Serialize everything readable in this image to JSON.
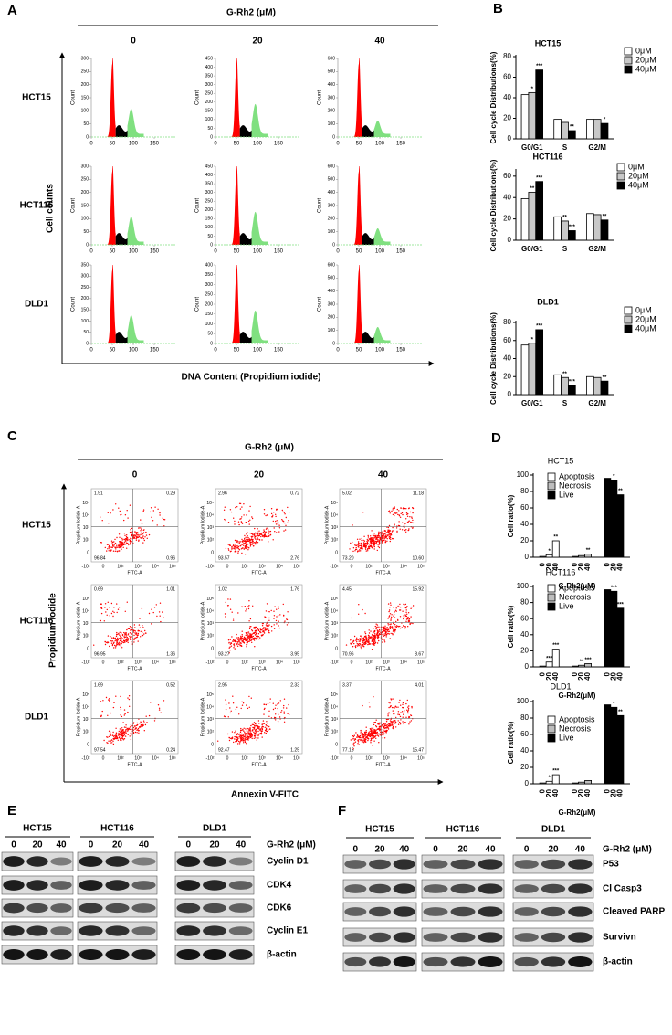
{
  "panel_a": {
    "label": "A",
    "treatment": "G-Rh2 (μM)",
    "doses": [
      "0",
      "20",
      "40"
    ],
    "cell_lines": [
      "HCT15",
      "HCT116",
      "DLD1"
    ],
    "y_title": "Cell counts",
    "x_title": "DNA Content (Propidium iodide)",
    "plot_y_label": "Count",
    "xlim": [
      0,
      200
    ],
    "xticks": [
      0,
      50,
      100,
      150
    ],
    "plots": [
      [
        {
          "ylim": [
            0,
            300
          ],
          "yticks": [
            0,
            50,
            100,
            150,
            200,
            250,
            300
          ]
        },
        {
          "ylim": [
            0,
            450
          ],
          "yticks": [
            0,
            50,
            100,
            150,
            200,
            250,
            300,
            350,
            400,
            450
          ]
        },
        {
          "ylim": [
            0,
            600
          ],
          "yticks": [
            0,
            100,
            200,
            300,
            400,
            500,
            600
          ]
        }
      ],
      [
        {
          "ylim": [
            0,
            300
          ],
          "yticks": [
            0,
            50,
            100,
            150,
            200,
            250,
            300
          ]
        },
        {
          "ylim": [
            0,
            450
          ],
          "yticks": [
            0,
            50,
            100,
            150,
            200,
            250,
            300,
            350,
            400,
            450
          ]
        },
        {
          "ylim": [
            0,
            600
          ],
          "yticks": [
            0,
            100,
            200,
            300,
            400,
            500,
            600
          ]
        }
      ],
      [
        {
          "ylim": [
            0,
            350
          ],
          "yticks": [
            0,
            50,
            100,
            150,
            200,
            250,
            300,
            350
          ]
        },
        {
          "ylim": [
            0,
            400
          ],
          "yticks": [
            0,
            50,
            100,
            150,
            200,
            250,
            300,
            350,
            400
          ]
        },
        {
          "ylim": [
            0,
            600
          ],
          "yticks": [
            0,
            100,
            200,
            300,
            400,
            500,
            600
          ]
        }
      ]
    ]
  },
  "panel_b": {
    "label": "B"
  },
  "panel_c": {
    "label": "C",
    "treatment": "G-Rh2 (μM)",
    "doses": [
      "0",
      "20",
      "40"
    ],
    "cell_lines": [
      "HCT15",
      "HCT116",
      "DLD1"
    ],
    "y_title": "Propidium iodide",
    "x_title": "Annexin V-FITC",
    "plot_y_label": "Propidium Iodide-A",
    "plot_x_label": "FITC-A",
    "xtick_labels": [
      "-10²",
      "0",
      "10²",
      "10³",
      "10⁴",
      "10⁵"
    ],
    "ytick_labels": [
      "0",
      "10²",
      "10³",
      "10⁴",
      "10⁵"
    ],
    "quadrants": [
      [
        [
          "1.91",
          "0.29",
          "96.84",
          "0.96"
        ],
        [
          "2.96",
          "0.72",
          "93.57",
          "2.76"
        ],
        [
          "5.02",
          "11.18",
          "73.20",
          "10.60"
        ]
      ],
      [
        [
          "0.69",
          "1.01",
          "96.95",
          "1.36"
        ],
        [
          "1.02",
          "1.76",
          "93.27",
          "3.95"
        ],
        [
          "4.45",
          "15.92",
          "70.96",
          "8.67"
        ]
      ],
      [
        [
          "1.69",
          "0.52",
          "97.54",
          "0.24"
        ],
        [
          "2.95",
          "2.33",
          "92.47",
          "1.25"
        ],
        [
          "3.37",
          "4.01",
          "77.15",
          "15.47"
        ]
      ]
    ]
  },
  "panel_d": {
    "label": "D"
  },
  "chart_data": [
    {
      "type": "bar",
      "title": "HCT15",
      "y_label": "Cell cycle Distributions(%)",
      "categories": [
        "G0/G1",
        "S",
        "G2/M"
      ],
      "ylim": [
        0,
        80
      ],
      "yticks": [
        0,
        20,
        40,
        60,
        80
      ],
      "series": [
        {
          "name": "0μM",
          "color": "#ffffff",
          "values": [
            43,
            19,
            19
          ],
          "significance": [
            null,
            null,
            null
          ]
        },
        {
          "name": "20μM",
          "color": "#c8c8c8",
          "values": [
            45,
            16,
            19
          ],
          "significance": [
            "*",
            null,
            null
          ]
        },
        {
          "name": "40μM",
          "color": "#000000",
          "values": [
            67,
            8,
            15
          ],
          "significance": [
            "***",
            "**",
            "*"
          ]
        }
      ]
    },
    {
      "type": "bar",
      "title": "HCT116",
      "y_label": "Cell cycle Distributions(%)",
      "categories": [
        "G0/G1",
        "S",
        "G2/M"
      ],
      "ylim": [
        0,
        65
      ],
      "yticks": [
        0,
        20,
        40,
        60
      ],
      "series": [
        {
          "name": "0μM",
          "color": "#ffffff",
          "values": [
            39,
            22,
            25
          ],
          "significance": [
            null,
            null,
            null
          ]
        },
        {
          "name": "20μM",
          "color": "#c8c8c8",
          "values": [
            45,
            18,
            24
          ],
          "significance": [
            "**",
            "**",
            null
          ]
        },
        {
          "name": "40μM",
          "color": "#000000",
          "values": [
            55,
            9,
            19
          ],
          "significance": [
            "***",
            "***",
            "**"
          ]
        }
      ]
    },
    {
      "type": "bar",
      "title": "DLD1",
      "y_label": "Cell cycle Distributions(%)",
      "categories": [
        "G0/G1",
        "S",
        "G2/M"
      ],
      "ylim": [
        0,
        80
      ],
      "yticks": [
        0,
        20,
        40,
        60,
        80
      ],
      "series": [
        {
          "name": "0μM",
          "color": "#ffffff",
          "values": [
            55,
            22,
            20
          ],
          "significance": [
            null,
            null,
            null
          ]
        },
        {
          "name": "20μM",
          "color": "#c8c8c8",
          "values": [
            57,
            19,
            19
          ],
          "significance": [
            "*",
            "**",
            null
          ]
        },
        {
          "name": "40μM",
          "color": "#000000",
          "values": [
            72,
            10,
            15
          ],
          "significance": [
            "***",
            "***",
            "**"
          ]
        }
      ]
    },
    {
      "type": "bar",
      "title": "HCT15",
      "y_label": "Cell ratio(%)",
      "x_label": "G-Rh2(μM)",
      "categories": [
        "0",
        "20",
        "40"
      ],
      "ylim": [
        0,
        100
      ],
      "yticks": [
        0,
        20,
        40,
        60,
        80,
        100
      ],
      "series": [
        {
          "name": "Apoptosis",
          "color": "#ffffff",
          "values": [
            1,
            3,
            20
          ],
          "significance": [
            null,
            "*",
            "**"
          ]
        },
        {
          "name": "Necrosis",
          "color": "#bdbdbd",
          "values": [
            1,
            2,
            4
          ],
          "significance": [
            null,
            null,
            "**"
          ]
        },
        {
          "name": "Live",
          "color": "#000000",
          "values": [
            96,
            94,
            76
          ],
          "significance": [
            null,
            "*",
            "**"
          ]
        }
      ]
    },
    {
      "type": "bar",
      "title": "HCT116",
      "y_label": "Cell ratio(%)",
      "x_label": "G-Rh2(μM)",
      "categories": [
        "0",
        "20",
        "40"
      ],
      "ylim": [
        0,
        100
      ],
      "yticks": [
        0,
        20,
        40,
        60,
        80,
        100
      ],
      "series": [
        {
          "name": "Apoptosis",
          "color": "#ffffff",
          "values": [
            1,
            6,
            22
          ],
          "significance": [
            null,
            "***",
            "***"
          ]
        },
        {
          "name": "Necrosis",
          "color": "#bdbdbd",
          "values": [
            1,
            2,
            4
          ],
          "significance": [
            null,
            "**",
            "***"
          ]
        },
        {
          "name": "Live",
          "color": "#000000",
          "values": [
            96,
            94,
            73
          ],
          "significance": [
            null,
            "***",
            "***"
          ]
        }
      ]
    },
    {
      "type": "bar",
      "title": "DLD1",
      "y_label": "Cell ratio(%)",
      "x_label": "G-Rh2(μM)",
      "categories": [
        "0",
        "20",
        "40"
      ],
      "ylim": [
        0,
        100
      ],
      "yticks": [
        0,
        20,
        40,
        60,
        80,
        100
      ],
      "series": [
        {
          "name": "Apoptosis",
          "color": "#ffffff",
          "values": [
            1,
            3,
            11
          ],
          "significance": [
            null,
            "*",
            "***"
          ]
        },
        {
          "name": "Necrosis",
          "color": "#bdbdbd",
          "values": [
            1,
            2,
            4
          ],
          "significance": [
            null,
            null,
            null
          ]
        },
        {
          "name": "Live",
          "color": "#000000",
          "values": [
            96,
            93,
            83
          ],
          "significance": [
            null,
            "*",
            "**"
          ]
        }
      ]
    }
  ],
  "panel_e": {
    "label": "E",
    "treatment": "G-Rh2 (μM)",
    "cell_lines": [
      "HCT15",
      "HCT116",
      "DLD1"
    ],
    "doses": [
      "0",
      "20",
      "40"
    ],
    "proteins": [
      "Cyclin D1",
      "CDK4",
      "CDK6",
      "Cyclin E1",
      "β-actin"
    ]
  },
  "panel_f": {
    "label": "F",
    "treatment": "G-Rh2 (μM)",
    "cell_lines": [
      "HCT15",
      "HCT116",
      "DLD1"
    ],
    "doses": [
      "0",
      "20",
      "40"
    ],
    "proteins": [
      "P53",
      "Cl Casp3",
      "Cleaved PARP",
      "Survivn",
      "β-actin"
    ]
  }
}
